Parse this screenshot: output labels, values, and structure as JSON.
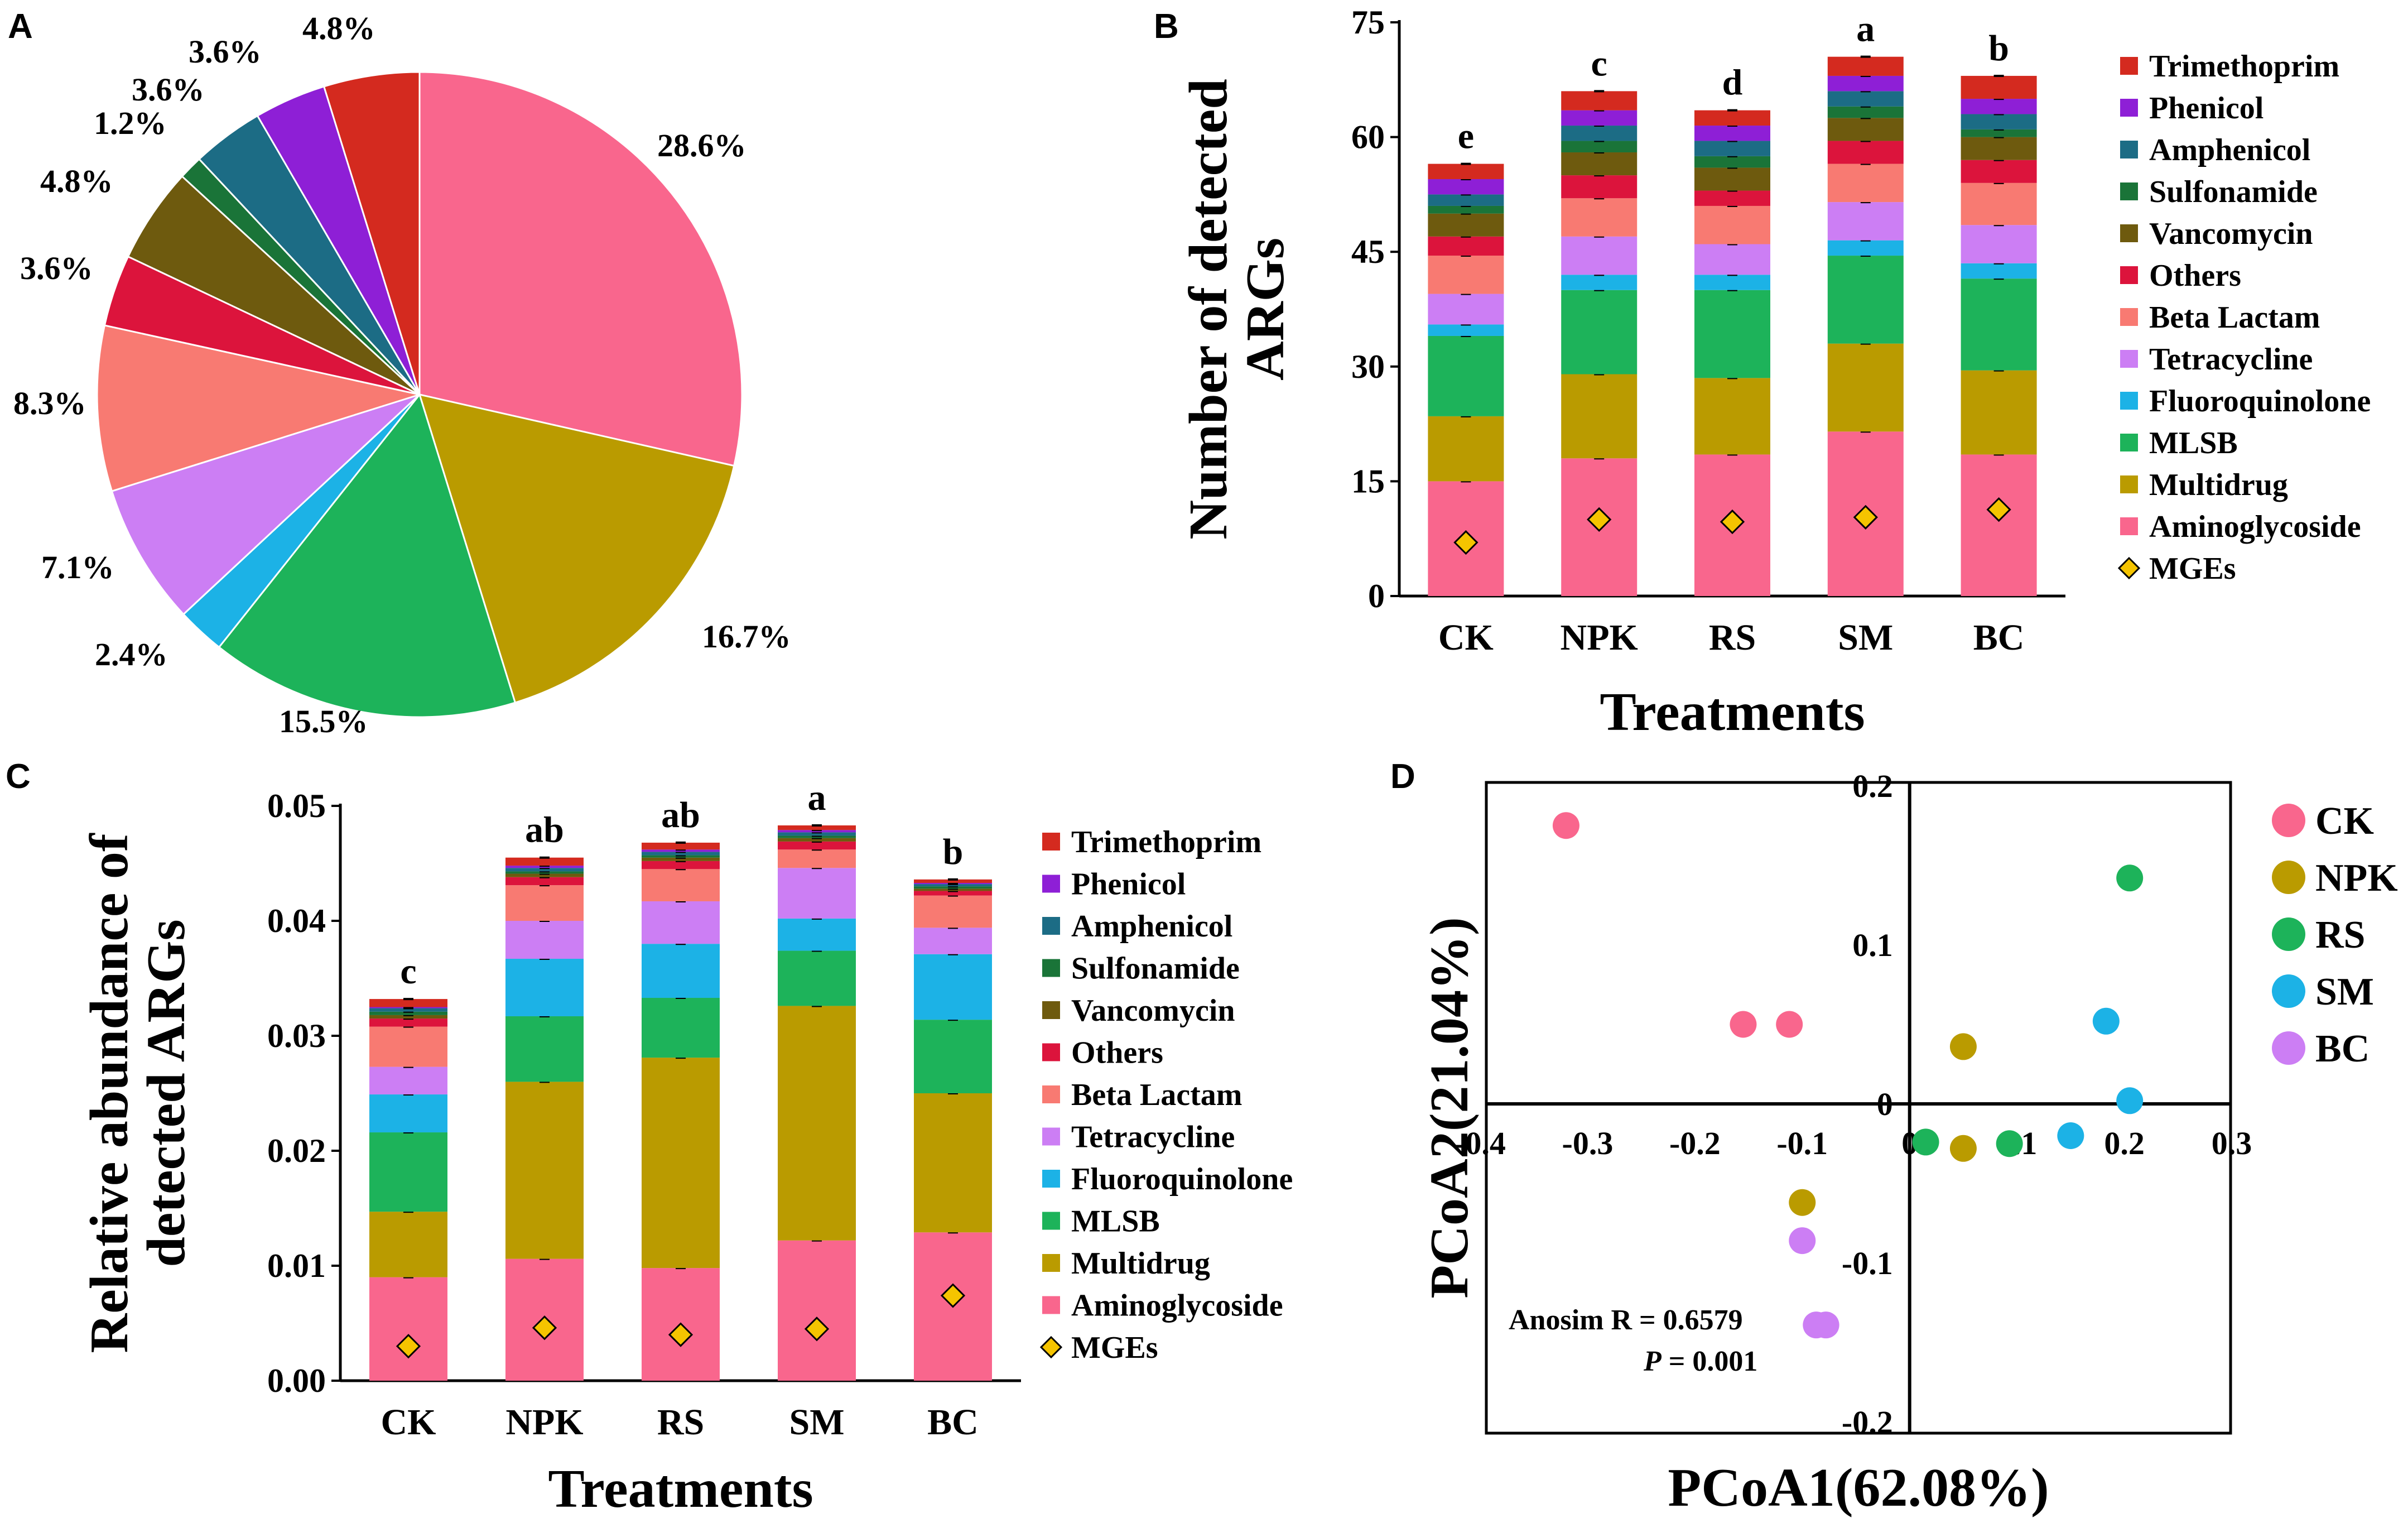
{
  "colors": {
    "Trimethoprim": "#D42A1F",
    "Phenicol": "#8E1FD6",
    "Amphenicol": "#1C6C85",
    "Sulfonamide": "#1A7438",
    "Vancomycin": "#6E5A0E",
    "Others": "#DC143C",
    "Beta Lactam": "#F87A72",
    "Tetracycline": "#CC7EF4",
    "Fluoroquinolone": "#1CB2E6",
    "MLSB": "#1DB35A",
    "Multidrug": "#BA9B00",
    "Aminoglycoside": "#F9668D",
    "MGEs": "#F5C400"
  },
  "panel_labels": {
    "a": "A",
    "b": "B",
    "c": "C",
    "d": "D"
  },
  "pie": {
    "type": "pie",
    "slices": [
      {
        "name": "Aminoglycoside",
        "percent": 28.6,
        "label": "28.6%"
      },
      {
        "name": "Multidrug",
        "percent": 16.7,
        "label": "16.7%"
      },
      {
        "name": "MLSB",
        "percent": 15.5,
        "label": "15.5%"
      },
      {
        "name": "Fluoroquinolone",
        "percent": 2.4,
        "label": "2.4%"
      },
      {
        "name": "Tetracycline",
        "percent": 7.1,
        "label": "7.1%"
      },
      {
        "name": "Beta Lactam",
        "percent": 8.3,
        "label": "8.3%"
      },
      {
        "name": "Others",
        "percent": 3.6,
        "label": "3.6%"
      },
      {
        "name": "Vancomycin",
        "percent": 4.8,
        "label": "4.8%"
      },
      {
        "name": "Sulfonamide",
        "percent": 1.2,
        "label": "1.2%"
      },
      {
        "name": "Amphenicol",
        "percent": 3.6,
        "label": "3.6%"
      },
      {
        "name": "Phenicol",
        "percent": 3.6,
        "label": "3.6%"
      },
      {
        "name": "Trimethoprim",
        "percent": 4.8,
        "label": "4.8%"
      }
    ]
  },
  "chart_data": [
    {
      "type": "bar",
      "stacked": true,
      "panel": "B",
      "categories": [
        "CK",
        "NPK",
        "RS",
        "SM",
        "BC"
      ],
      "xlabel": "Treatments",
      "ylabel_lines": [
        "Number of detected",
        "ARGs"
      ],
      "ylim": [
        0,
        75
      ],
      "yticks": [
        0,
        15,
        30,
        45,
        60,
        75
      ],
      "series": [
        {
          "name": "Aminoglycoside",
          "values": [
            15,
            18,
            18.5,
            21.5,
            18.5
          ]
        },
        {
          "name": "Multidrug",
          "values": [
            8.5,
            11,
            10,
            11.5,
            11
          ]
        },
        {
          "name": "MLSB",
          "values": [
            10.5,
            11,
            11.5,
            11.5,
            12
          ]
        },
        {
          "name": "Fluoroquinolone",
          "values": [
            1.5,
            2,
            2,
            2,
            2
          ]
        },
        {
          "name": "Tetracycline",
          "values": [
            4,
            5,
            4,
            5,
            5
          ]
        },
        {
          "name": "Beta Lactam",
          "values": [
            5,
            5,
            5,
            5,
            5.5
          ]
        },
        {
          "name": "Others",
          "values": [
            2.5,
            3,
            2,
            3,
            3
          ]
        },
        {
          "name": "Vancomycin",
          "values": [
            3,
            3,
            3,
            3,
            3
          ]
        },
        {
          "name": "Sulfonamide",
          "values": [
            1,
            1.5,
            1.5,
            1.5,
            1
          ]
        },
        {
          "name": "Amphenicol",
          "values": [
            1.5,
            2,
            2,
            2,
            2
          ]
        },
        {
          "name": "Phenicol",
          "values": [
            2,
            2,
            2,
            2,
            2
          ]
        },
        {
          "name": "Trimethoprim",
          "values": [
            2,
            2.5,
            2,
            2.5,
            3
          ]
        }
      ],
      "mges": [
        7,
        10,
        9.7,
        10.3,
        11.3
      ],
      "significance": [
        "e",
        "c",
        "d",
        "a",
        "b"
      ],
      "legend": [
        "Trimethoprim",
        "Phenicol",
        "Amphenicol",
        "Sulfonamide",
        "Vancomycin",
        "Others",
        "Beta Lactam",
        "Tetracycline",
        "Fluoroquinolone",
        "MLSB",
        "Multidrug",
        "Aminoglycoside",
        "MGEs"
      ]
    },
    {
      "type": "bar",
      "stacked": true,
      "panel": "C",
      "categories": [
        "CK",
        "NPK",
        "RS",
        "SM",
        "BC"
      ],
      "xlabel": "Treatments",
      "ylabel_lines": [
        "Relative abundance of",
        "detected ARGs"
      ],
      "ylim": [
        0,
        0.05
      ],
      "yticks": [
        "0.00",
        "0.01",
        "0.02",
        "0.03",
        "0.04",
        "0.05"
      ],
      "series": [
        {
          "name": "Aminoglycoside",
          "values": [
            0.009,
            0.0106,
            0.0098,
            0.0122,
            0.0129
          ]
        },
        {
          "name": "Multidrug",
          "values": [
            0.0057,
            0.0154,
            0.0183,
            0.0204,
            0.0121
          ]
        },
        {
          "name": "MLSB",
          "values": [
            0.0069,
            0.0057,
            0.0052,
            0.0048,
            0.0064
          ]
        },
        {
          "name": "Fluoroquinolone",
          "values": [
            0.0033,
            0.005,
            0.0047,
            0.0028,
            0.0057
          ]
        },
        {
          "name": "Tetracycline",
          "values": [
            0.0024,
            0.0033,
            0.0037,
            0.0044,
            0.0023
          ]
        },
        {
          "name": "Beta Lactam",
          "values": [
            0.0035,
            0.0031,
            0.0028,
            0.0016,
            0.0028
          ]
        },
        {
          "name": "Others",
          "values": [
            0.0007,
            0.0007,
            0.0007,
            0.0007,
            0.0004
          ]
        },
        {
          "name": "Vancomycin",
          "values": [
            0.0003,
            0.0003,
            0.0003,
            0.0003,
            0.0002
          ]
        },
        {
          "name": "Sulfonamide",
          "values": [
            0.0003,
            0.0002,
            0.0002,
            0.0002,
            0.0002
          ]
        },
        {
          "name": "Amphenicol",
          "values": [
            0.0003,
            0.0003,
            0.0003,
            0.0003,
            0.0002
          ]
        },
        {
          "name": "Phenicol",
          "values": [
            0.0001,
            0.0002,
            0.0002,
            0.0002,
            0.0001
          ]
        },
        {
          "name": "Trimethoprim",
          "values": [
            0.0007,
            0.0007,
            0.0006,
            0.0004,
            0.0003
          ]
        }
      ],
      "mges": [
        0.003,
        0.0046,
        0.004,
        0.0045,
        0.0074
      ],
      "significance": [
        "c",
        "ab",
        "ab",
        "a",
        "b"
      ],
      "legend": [
        "Trimethoprim",
        "Phenicol",
        "Amphenicol",
        "Sulfonamide",
        "Vancomycin",
        "Others",
        "Beta Lactam",
        "Tetracycline",
        "Fluoroquinolone",
        "MLSB",
        "Multidrug",
        "Aminoglycoside",
        "MGEs"
      ]
    },
    {
      "type": "scatter",
      "panel": "D",
      "xlabel": "PCoA1(62.08%)",
      "ylabel": "PCoA2(21.04%)",
      "xlim": [
        -0.4,
        0.3
      ],
      "ylim": [
        -0.2,
        0.2
      ],
      "xticks": [
        "-0.4",
        "-0.3",
        "-0.2",
        "-0.1",
        "0",
        "0.1",
        "0.2",
        "0.3"
      ],
      "yticks": [
        "-0.2",
        "-0.1",
        "0",
        "0.1",
        "0.2"
      ],
      "series": [
        {
          "name": "CK",
          "color": "#F9668D",
          "points": [
            [
              -0.32,
              0.175
            ],
            [
              -0.155,
              0.05
            ],
            [
              -0.112,
              0.05
            ]
          ]
        },
        {
          "name": "NPK",
          "color": "#BA9B00",
          "points": [
            [
              0.05,
              0.036
            ],
            [
              -0.1,
              -0.062
            ],
            [
              0.05,
              -0.028
            ]
          ]
        },
        {
          "name": "RS",
          "color": "#1DB35A",
          "points": [
            [
              0.205,
              0.142
            ],
            [
              0.015,
              -0.024
            ],
            [
              0.093,
              -0.025
            ]
          ]
        },
        {
          "name": "SM",
          "color": "#1CB2E6",
          "points": [
            [
              0.183,
              0.052
            ],
            [
              0.205,
              0.002
            ],
            [
              0.15,
              -0.02
            ]
          ]
        },
        {
          "name": "BC",
          "color": "#CC7EF4",
          "points": [
            [
              -0.1,
              -0.086
            ],
            [
              -0.087,
              -0.139
            ],
            [
              -0.078,
              -0.139
            ]
          ]
        }
      ],
      "annotation_line1": "Anosim R = 0.6579",
      "annotation_p": "P",
      "annotation_line2": " = 0.001"
    }
  ]
}
